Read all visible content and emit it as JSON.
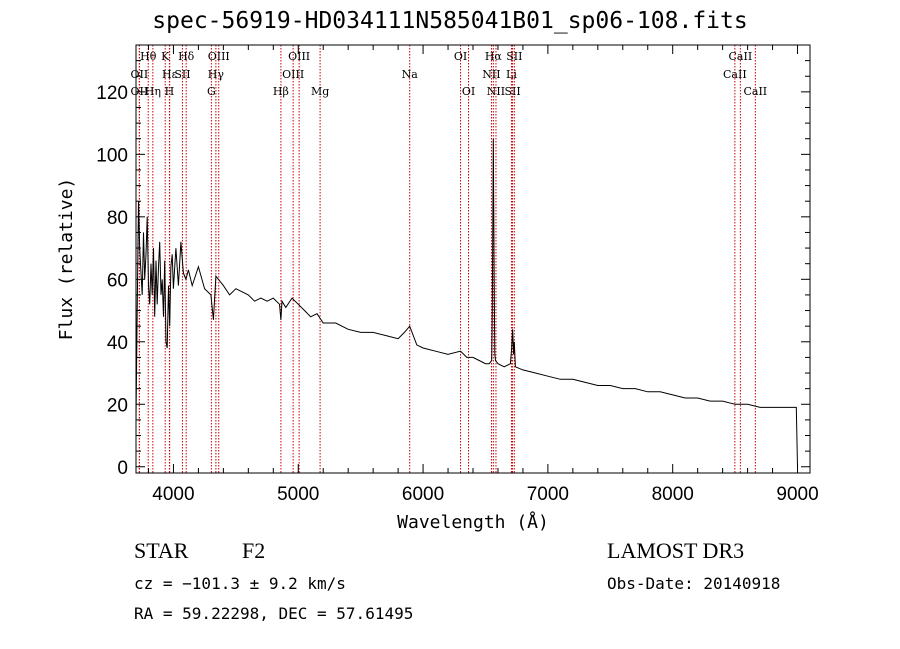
{
  "header": {
    "title": "spec-56919-HD034111N585041B01_sp06-108.fits"
  },
  "footer": {
    "object_type": "STAR",
    "subclass": "F2",
    "survey": "LAMOST DR3",
    "redshift_text": "cz = −101.3 ± 9.2 km/s",
    "obs_date_text": "Obs-Date: 20140918",
    "coords_text": "RA =  59.22298, DEC =  57.61495"
  },
  "chart_data": {
    "type": "line",
    "title": "spec-56919-HD034111N585041B01_sp06-108.fits",
    "xlabel": "Wavelength (Å)",
    "ylabel": "Flux (relative)",
    "xlim": [
      3700,
      9100
    ],
    "ylim": [
      -2,
      135
    ],
    "x_ticks": [
      4000,
      5000,
      6000,
      7000,
      8000,
      9000
    ],
    "y_ticks": [
      0,
      20,
      40,
      60,
      80,
      100,
      120
    ],
    "line_color": "#000000",
    "marker_color": "#cc0000",
    "series": [
      {
        "name": "flux",
        "x": [
          3700,
          3710,
          3720,
          3730,
          3740,
          3750,
          3760,
          3770,
          3780,
          3790,
          3800,
          3810,
          3820,
          3830,
          3840,
          3850,
          3860,
          3870,
          3880,
          3890,
          3900,
          3910,
          3920,
          3930,
          3940,
          3950,
          3960,
          3970,
          3980,
          3990,
          4000,
          4020,
          4040,
          4060,
          4080,
          4100,
          4120,
          4150,
          4200,
          4250,
          4300,
          4320,
          4340,
          4360,
          4400,
          4450,
          4500,
          4550,
          4600,
          4650,
          4700,
          4750,
          4800,
          4850,
          4861,
          4870,
          4900,
          4950,
          5000,
          5050,
          5100,
          5150,
          5200,
          5300,
          5400,
          5500,
          5600,
          5700,
          5800,
          5850,
          5893,
          5950,
          6000,
          6100,
          6200,
          6300,
          6350,
          6400,
          6450,
          6500,
          6530,
          6550,
          6555,
          6563,
          6570,
          6575,
          6580,
          6600,
          6650,
          6700,
          6710,
          6717,
          6725,
          6731,
          6740,
          6800,
          6900,
          7000,
          7100,
          7200,
          7300,
          7400,
          7500,
          7600,
          7700,
          7800,
          7900,
          8000,
          8100,
          8200,
          8300,
          8400,
          8500,
          8600,
          8700,
          8800,
          8900,
          8990,
          9000
        ],
        "y": [
          15,
          50,
          85,
          70,
          62,
          55,
          75,
          60,
          68,
          80,
          58,
          52,
          65,
          55,
          70,
          48,
          66,
          52,
          64,
          72,
          55,
          60,
          48,
          66,
          40,
          38,
          58,
          45,
          64,
          68,
          57,
          70,
          58,
          72,
          62,
          60,
          63,
          58,
          64,
          57,
          55,
          47,
          61,
          60,
          58,
          55,
          57,
          56,
          55,
          53,
          54,
          53,
          54,
          52,
          47,
          53,
          51,
          54,
          52,
          50,
          48,
          49,
          46,
          46,
          44,
          43,
          43,
          42,
          41,
          43,
          45,
          39,
          38,
          37,
          36,
          37,
          35,
          35,
          34,
          33,
          33,
          34,
          50,
          105,
          60,
          36,
          34,
          33,
          32,
          33,
          38,
          44,
          36,
          40,
          32,
          31,
          30,
          29,
          28,
          28,
          27,
          26,
          26,
          25,
          25,
          24,
          24,
          23,
          22,
          22,
          21,
          21,
          20,
          20,
          19,
          19,
          19,
          19,
          0
        ]
      }
    ],
    "spectral_lines": [
      {
        "label": "Hθ",
        "wavelength": 3798,
        "row": 0
      },
      {
        "label": "OII",
        "wavelength": 3727,
        "row": 1
      },
      {
        "label": "OII",
        "wavelength": 3727,
        "row": 2
      },
      {
        "label": "K",
        "wavelength": 3934,
        "row": 0
      },
      {
        "label": "Hε",
        "wavelength": 3970,
        "row": 1
      },
      {
        "label": "Hη",
        "wavelength": 3835,
        "row": 2
      },
      {
        "label": "H",
        "wavelength": 3968,
        "row": 2
      },
      {
        "label": "Hδ",
        "wavelength": 4102,
        "row": 0
      },
      {
        "label": "SII",
        "wavelength": 4072,
        "row": 1
      },
      {
        "label": "OIII",
        "wavelength": 4363,
        "row": 0
      },
      {
        "label": "Hγ",
        "wavelength": 4340,
        "row": 1
      },
      {
        "label": "G",
        "wavelength": 4304,
        "row": 2
      },
      {
        "label": "OIII",
        "wavelength": 5007,
        "row": 0
      },
      {
        "label": "OIII",
        "wavelength": 4959,
        "row": 1
      },
      {
        "label": "Hβ",
        "wavelength": 4861,
        "row": 2
      },
      {
        "label": "Mg",
        "wavelength": 5175,
        "row": 2
      },
      {
        "label": "Na",
        "wavelength": 5893,
        "row": 1
      },
      {
        "label": "OI",
        "wavelength": 6300,
        "row": 0
      },
      {
        "label": "OI",
        "wavelength": 6364,
        "row": 2
      },
      {
        "label": "Hα",
        "wavelength": 6563,
        "row": 0
      },
      {
        "label": "SII",
        "wavelength": 6731,
        "row": 0
      },
      {
        "label": "NII",
        "wavelength": 6548,
        "row": 1
      },
      {
        "label": "Li",
        "wavelength": 6708,
        "row": 1
      },
      {
        "label": "NII",
        "wavelength": 6584,
        "row": 2
      },
      {
        "label": "SII",
        "wavelength": 6717,
        "row": 2
      },
      {
        "label": "CaII",
        "wavelength": 8542,
        "row": 0
      },
      {
        "label": "CaII",
        "wavelength": 8498,
        "row": 1
      },
      {
        "label": "CaII",
        "wavelength": 8662,
        "row": 2
      }
    ]
  }
}
